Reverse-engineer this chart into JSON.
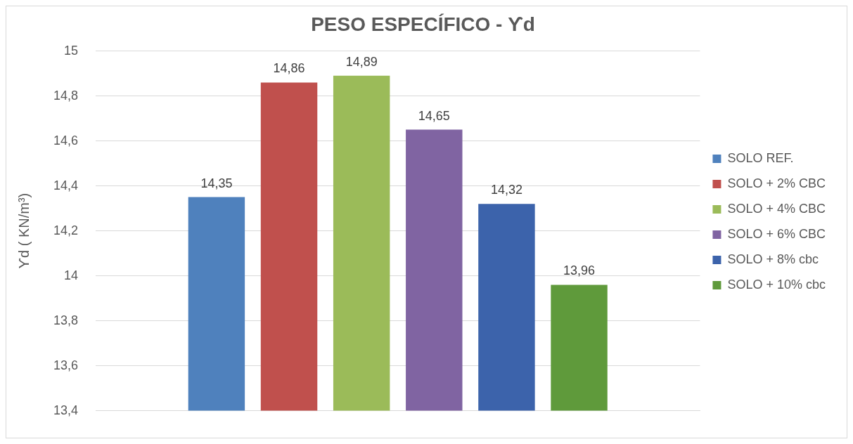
{
  "chart_data": {
    "type": "bar",
    "title": "PESO ESPECÍFICO - ϒd",
    "ylabel": "ϒd ( KN/m³)",
    "categories": [
      null
    ],
    "series": [
      {
        "name": "SOLO REF.",
        "color": "#4f81bd",
        "values": [
          14.35
        ],
        "value_labels": [
          "14,35"
        ]
      },
      {
        "name": "SOLO + 2% CBC",
        "color": "#c0504d",
        "values": [
          14.86
        ],
        "value_labels": [
          "14,86"
        ]
      },
      {
        "name": "SOLO + 4% CBC",
        "color": "#9bbb59",
        "values": [
          14.89
        ],
        "value_labels": [
          "14,89"
        ]
      },
      {
        "name": "SOLO + 6% CBC",
        "color": "#8064a2",
        "values": [
          14.65
        ],
        "value_labels": [
          "14,65"
        ]
      },
      {
        "name": "SOLO + 8% cbc",
        "color": "#3c63ab",
        "values": [
          14.32
        ],
        "value_labels": [
          "14,32"
        ]
      },
      {
        "name": "SOLO + 10% cbc",
        "color": "#5f9a3b",
        "values": [
          13.96
        ],
        "value_labels": [
          "13,96"
        ]
      }
    ],
    "ylim": [
      13.4,
      15
    ],
    "yticks": [
      {
        "value": 13.4,
        "label": "13,4"
      },
      {
        "value": 13.6,
        "label": "13,6"
      },
      {
        "value": 13.8,
        "label": "13,8"
      },
      {
        "value": 14,
        "label": "14"
      },
      {
        "value": 14.2,
        "label": "14,2"
      },
      {
        "value": 14.4,
        "label": "14,4"
      },
      {
        "value": 14.6,
        "label": "14,6"
      },
      {
        "value": 14.8,
        "label": "14,8"
      },
      {
        "value": 15,
        "label": "15"
      }
    ],
    "grid": "y",
    "legend": "right"
  }
}
